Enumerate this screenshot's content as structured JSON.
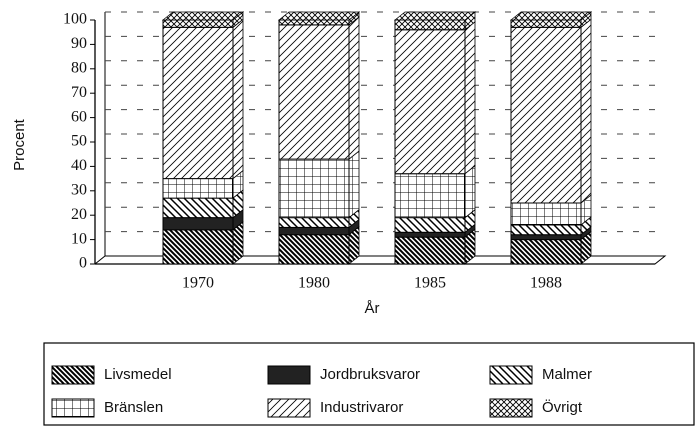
{
  "chart_data": {
    "type": "stacked-bar",
    "x_label": "År",
    "y_label": "Procent",
    "categories": [
      "1970",
      "1980",
      "1985",
      "1988"
    ],
    "series": [
      {
        "name": "Livsmedel",
        "color": "#000000",
        "pattern": "dense-backslash",
        "values": [
          14,
          12,
          11,
          10
        ]
      },
      {
        "name": "Jordbruksvaror",
        "color": "#000000",
        "pattern": "solid",
        "values": [
          5,
          3,
          2,
          2
        ]
      },
      {
        "name": "Malmer",
        "color": "#000000",
        "pattern": "backslash",
        "values": [
          8,
          4,
          6,
          4
        ]
      },
      {
        "name": "Bränslen",
        "color": "#000000",
        "pattern": "grid",
        "values": [
          8,
          24,
          18,
          9
        ]
      },
      {
        "name": "Industrivaror",
        "color": "#000000",
        "pattern": "slash",
        "values": [
          62,
          55,
          59,
          72
        ]
      },
      {
        "name": "Övrigt",
        "color": "#000000",
        "pattern": "crosshatch",
        "values": [
          3,
          2,
          4,
          3
        ]
      }
    ],
    "ylim": [
      0,
      100
    ],
    "yticks": [
      0,
      10,
      20,
      30,
      40,
      50,
      60,
      70,
      80,
      90,
      100
    ],
    "grid": true
  }
}
